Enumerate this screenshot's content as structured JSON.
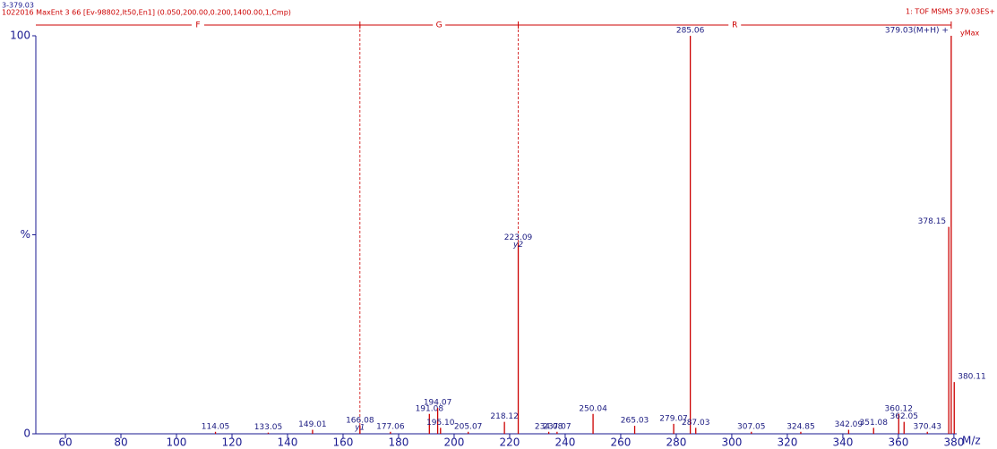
{
  "chart_data": {
    "type": "spectrum",
    "title": "3-379.03",
    "subtitle": "1022016   MaxEnt 3  66 [Ev-98802,It50,En1] (0.050,200.00,0.200,1400.00,1,Cmp)",
    "instrument": "1: TOF MSMS 379.03ES+",
    "ymax_label": "yMax",
    "x_label": "M/z",
    "color": "#cc0000",
    "sequence_letters": [
      "F",
      "G",
      "R"
    ],
    "sequence_marks": [
      166.08,
      223.09,
      379.03
    ],
    "x": [
      114.05,
      133.05,
      149.01,
      166.08,
      177.06,
      191.08,
      194.07,
      195.1,
      205.07,
      218.12,
      223.09,
      234.08,
      237.07,
      250.04,
      265.03,
      279.07,
      285.06,
      287.03,
      307.05,
      324.85,
      342.09,
      351.08,
      360.12,
      362.05,
      370.43,
      378.15,
      379.03,
      380.11
    ],
    "values": [
      0.5,
      0.3,
      1,
      2,
      0.5,
      5,
      6.5,
      1.5,
      0.5,
      3,
      48,
      0.5,
      0.5,
      5,
      2,
      2.5,
      100,
      1.5,
      0.5,
      0.5,
      1,
      1.5,
      5,
      3,
      0.5,
      52,
      100,
      13
    ],
    "value_labels": [
      "114.05",
      "133.05",
      "149.01",
      "166.08",
      "177.06",
      "191.08",
      "194.07",
      "195.10",
      "205.07",
      "218.12",
      "223.09",
      "234.08",
      "237.07",
      "250.04",
      "265.03",
      "279.07",
      "285.06",
      "287.03",
      "307.05",
      "324.85",
      "342.09",
      "351.08",
      "360.12",
      "362.05",
      "370.43",
      "378.15",
      "379.03(M+H) +",
      "380.11"
    ],
    "annotations": [
      {
        "x": 166.08,
        "text": "y1"
      },
      {
        "x": 223.09,
        "text": "y2"
      }
    ],
    "xlim": [
      49.35,
      381
    ],
    "ylim": [
      0,
      100
    ],
    "xticks": [
      60,
      80,
      100,
      120,
      140,
      160,
      180,
      200,
      220,
      240,
      260,
      280,
      300,
      320,
      340,
      360,
      380
    ],
    "yticks": [
      0,
      {
        "value": 50,
        "label": "%"
      },
      100
    ]
  }
}
